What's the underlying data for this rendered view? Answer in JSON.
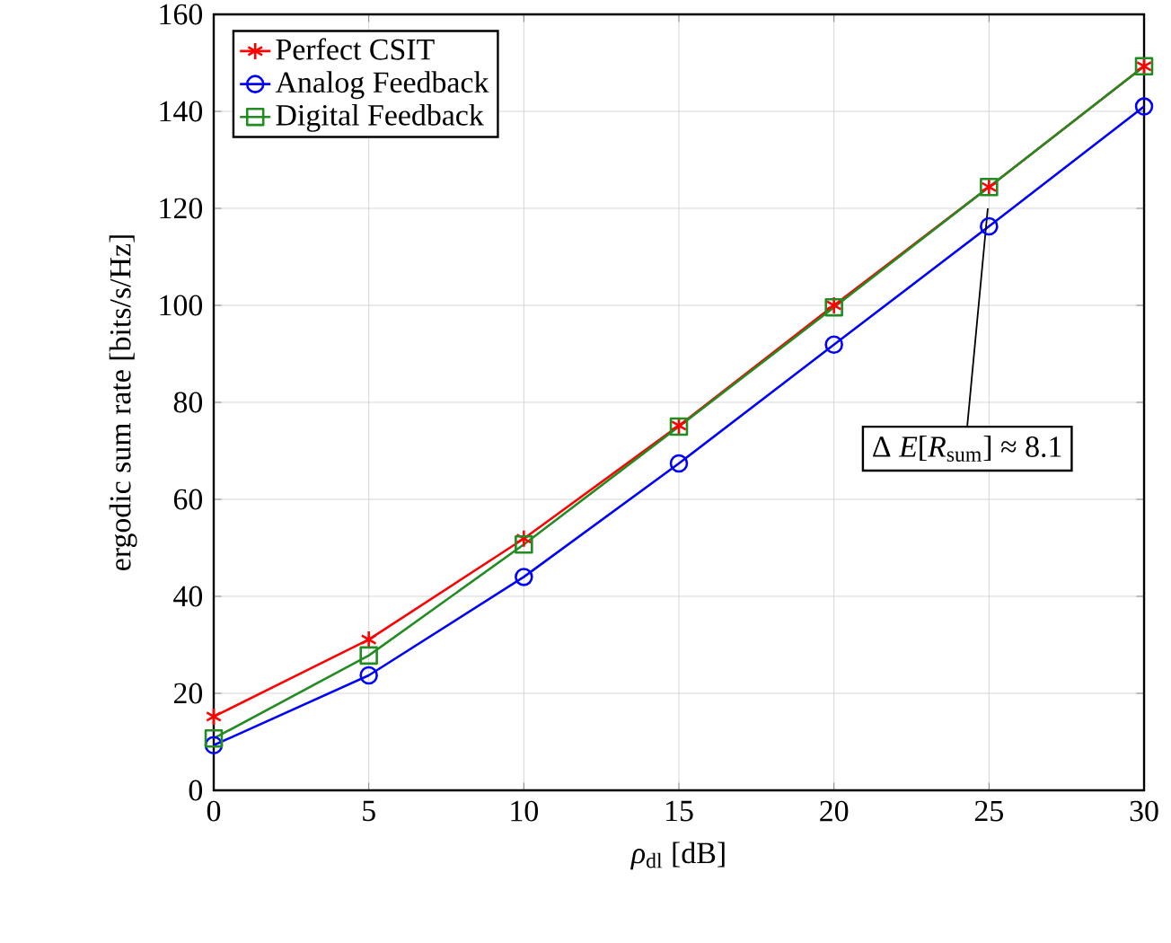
{
  "chart_data": {
    "type": "line",
    "xlabel": "*ρ*$_{dl}$ [dB]",
    "ylabel": "ergodic sum rate [bits/s/Hz]",
    "x": [
      0,
      5,
      10,
      15,
      20,
      25,
      30
    ],
    "xlim": [
      0,
      30
    ],
    "xticks": [
      0,
      5,
      10,
      15,
      20,
      25,
      30
    ],
    "ylim": [
      0,
      160
    ],
    "yticks": [
      0,
      20,
      40,
      60,
      80,
      100,
      120,
      140,
      160
    ],
    "grid": true,
    "legend": "top left",
    "line_style": "solid",
    "series": [
      {
        "name": "Perfect CSIT",
        "color": "#ff0000",
        "marker": "cross",
        "values": [
          15.2,
          31.1,
          51.9,
          75.2,
          100,
          124.4,
          149.3
        ]
      },
      {
        "name": "Analog Feedback",
        "color": "#0000ff",
        "marker": "circle",
        "values": [
          9.3,
          23.7,
          44,
          67.4,
          91.9,
          116.3,
          141
        ]
      },
      {
        "name": "Digital Feedback",
        "color": "#228b22",
        "marker": "square",
        "values": [
          10.7,
          27.8,
          50.7,
          75,
          99.6,
          124.4,
          149.3
        ]
      }
    ],
    "annotations": [
      "Δ *E*[*R*$_{sum}$] ≈ 8.1"
    ]
  }
}
